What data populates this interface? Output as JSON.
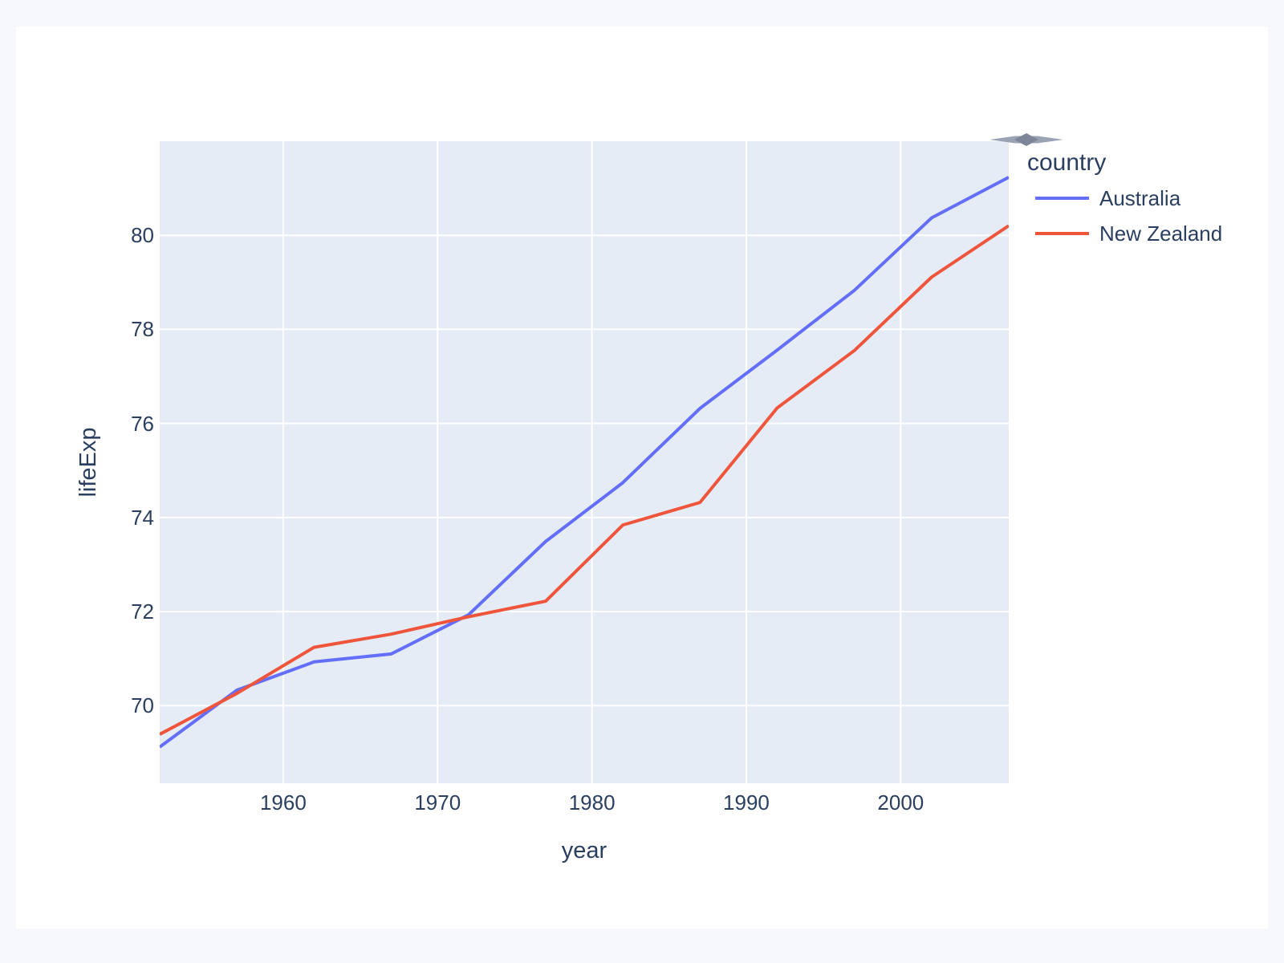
{
  "page": {
    "background": "#F6F8FD",
    "card_background": "#FFFFFF"
  },
  "chart_data": {
    "type": "line",
    "xlabel": "year",
    "ylabel": "lifeExp",
    "x": [
      1952,
      1957,
      1962,
      1967,
      1972,
      1977,
      1982,
      1987,
      1992,
      1997,
      2002,
      2007
    ],
    "series": [
      {
        "name": "Australia",
        "color": "#636EFA",
        "values": [
          69.12,
          70.33,
          70.93,
          71.1,
          71.93,
          73.49,
          74.74,
          76.32,
          77.56,
          78.83,
          80.37,
          81.235
        ]
      },
      {
        "name": "New Zealand",
        "color": "#EF553B",
        "values": [
          69.39,
          70.26,
          71.24,
          71.52,
          71.89,
          72.22,
          73.84,
          74.32,
          76.33,
          77.55,
          79.11,
          80.204
        ]
      }
    ],
    "xlim": [
      1952,
      2007
    ],
    "ylim": [
      68.35,
      82.0
    ],
    "xticks": [
      1960,
      1970,
      1980,
      1990,
      2000
    ],
    "yticks": [
      70,
      72,
      74,
      76,
      78,
      80
    ],
    "grid": true,
    "plot_bg": "#E5ECF6",
    "grid_color": "#FFFFFF",
    "font_color": "#2A3F5F",
    "line_width": 4,
    "legend_position": "right"
  },
  "legend": {
    "title": "country",
    "items": [
      {
        "label": "Australia",
        "color": "#636EFA"
      },
      {
        "label": "New Zealand",
        "color": "#EF553B"
      }
    ]
  },
  "icons": {
    "modebar_toggle": "collapsed-modebar-arrow",
    "modebar_colors": {
      "outer": "#9AA3B6",
      "inner": "#7D8699"
    }
  }
}
